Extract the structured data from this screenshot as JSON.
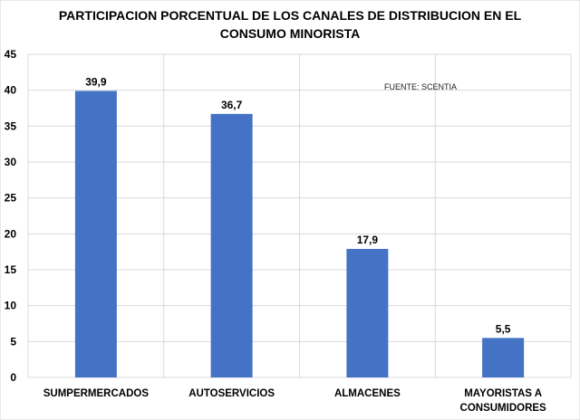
{
  "chart_data": {
    "type": "bar",
    "title_lines": [
      "PARTICIPACION  PORCENTUAL  DE LOS  CANALES  DE DISTRIBUCION  EN EL",
      "CONSUMO  MINORISTA"
    ],
    "categories": [
      [
        "SUMPERMERCADOS"
      ],
      [
        "AUTOSERVICIOS"
      ],
      [
        "ALMACENES"
      ],
      [
        "MAYORISTAS A",
        "CONSUMIDORES"
      ]
    ],
    "values": [
      39.9,
      36.7,
      17.9,
      5.5
    ],
    "data_labels": [
      "39,9",
      "36,7",
      "17,9",
      "5,5"
    ],
    "yticks": [
      0,
      5,
      10,
      15,
      20,
      25,
      30,
      35,
      40,
      45
    ],
    "ylim": [
      0,
      45
    ],
    "xlabel": "",
    "ylabel": "",
    "grid": true,
    "annotation": "FUENTE: SCENTIA",
    "bar_color": "#4472C4",
    "grid_color": "#D9D9D9"
  }
}
